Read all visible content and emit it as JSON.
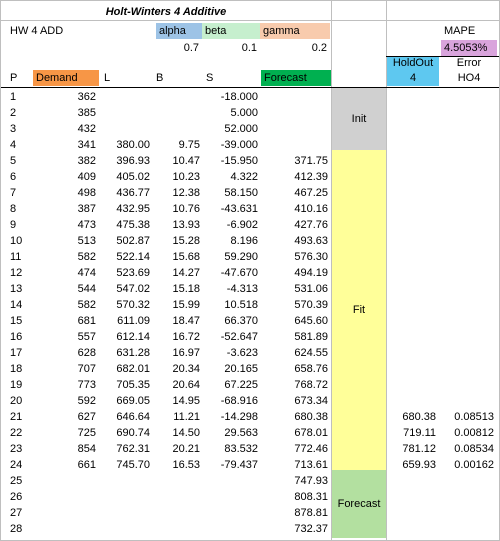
{
  "title": "Holt-Winters 4 Additive",
  "model_label": "HW 4 ADD",
  "params": {
    "alpha_label": "alpha",
    "alpha": "0.7",
    "beta_label": "beta",
    "beta": "0.1",
    "gamma_label": "gamma",
    "gamma": "0.2"
  },
  "mape": {
    "label": "MAPE",
    "value": "4.5053%"
  },
  "headers": {
    "p": "P",
    "demand": "Demand",
    "l": "L",
    "b": "B",
    "s": "S",
    "forecast": "Forecast",
    "holdout_line1": "HoldOut",
    "holdout_line2": "4",
    "error_line1": "Error",
    "error_line2": "HO4"
  },
  "phases": {
    "init": "Init",
    "fit": "Fit",
    "forecast": "Forecast"
  },
  "rows": [
    {
      "p": "1",
      "demand": "362",
      "l": "",
      "b": "",
      "s": "-18.000",
      "forecast": "",
      "holdout": "",
      "error": ""
    },
    {
      "p": "2",
      "demand": "385",
      "l": "",
      "b": "",
      "s": "5.000",
      "forecast": "",
      "holdout": "",
      "error": ""
    },
    {
      "p": "3",
      "demand": "432",
      "l": "",
      "b": "",
      "s": "52.000",
      "forecast": "",
      "holdout": "",
      "error": ""
    },
    {
      "p": "4",
      "demand": "341",
      "l": "380.00",
      "b": "9.75",
      "s": "-39.000",
      "forecast": "",
      "holdout": "",
      "error": ""
    },
    {
      "p": "5",
      "demand": "382",
      "l": "396.93",
      "b": "10.47",
      "s": "-15.950",
      "forecast": "371.75",
      "holdout": "",
      "error": ""
    },
    {
      "p": "6",
      "demand": "409",
      "l": "405.02",
      "b": "10.23",
      "s": "4.322",
      "forecast": "412.39",
      "holdout": "",
      "error": ""
    },
    {
      "p": "7",
      "demand": "498",
      "l": "436.77",
      "b": "12.38",
      "s": "58.150",
      "forecast": "467.25",
      "holdout": "",
      "error": ""
    },
    {
      "p": "8",
      "demand": "387",
      "l": "432.95",
      "b": "10.76",
      "s": "-43.631",
      "forecast": "410.16",
      "holdout": "",
      "error": ""
    },
    {
      "p": "9",
      "demand": "473",
      "l": "475.38",
      "b": "13.93",
      "s": "-6.902",
      "forecast": "427.76",
      "holdout": "",
      "error": ""
    },
    {
      "p": "10",
      "demand": "513",
      "l": "502.87",
      "b": "15.28",
      "s": "8.196",
      "forecast": "493.63",
      "holdout": "",
      "error": ""
    },
    {
      "p": "11",
      "demand": "582",
      "l": "522.14",
      "b": "15.68",
      "s": "59.290",
      "forecast": "576.30",
      "holdout": "",
      "error": ""
    },
    {
      "p": "12",
      "demand": "474",
      "l": "523.69",
      "b": "14.27",
      "s": "-47.670",
      "forecast": "494.19",
      "holdout": "",
      "error": ""
    },
    {
      "p": "13",
      "demand": "544",
      "l": "547.02",
      "b": "15.18",
      "s": "-4.313",
      "forecast": "531.06",
      "holdout": "",
      "error": ""
    },
    {
      "p": "14",
      "demand": "582",
      "l": "570.32",
      "b": "15.99",
      "s": "10.518",
      "forecast": "570.39",
      "holdout": "",
      "error": ""
    },
    {
      "p": "15",
      "demand": "681",
      "l": "611.09",
      "b": "18.47",
      "s": "66.370",
      "forecast": "645.60",
      "holdout": "",
      "error": ""
    },
    {
      "p": "16",
      "demand": "557",
      "l": "612.14",
      "b": "16.72",
      "s": "-52.647",
      "forecast": "581.89",
      "holdout": "",
      "error": ""
    },
    {
      "p": "17",
      "demand": "628",
      "l": "631.28",
      "b": "16.97",
      "s": "-3.623",
      "forecast": "624.55",
      "holdout": "",
      "error": ""
    },
    {
      "p": "18",
      "demand": "707",
      "l": "682.01",
      "b": "20.34",
      "s": "20.165",
      "forecast": "658.76",
      "holdout": "",
      "error": ""
    },
    {
      "p": "19",
      "demand": "773",
      "l": "705.35",
      "b": "20.64",
      "s": "67.225",
      "forecast": "768.72",
      "holdout": "",
      "error": ""
    },
    {
      "p": "20",
      "demand": "592",
      "l": "669.05",
      "b": "14.95",
      "s": "-68.916",
      "forecast": "673.34",
      "holdout": "",
      "error": ""
    },
    {
      "p": "21",
      "demand": "627",
      "l": "646.64",
      "b": "11.21",
      "s": "-14.298",
      "forecast": "680.38",
      "holdout": "680.38",
      "error": "0.08513"
    },
    {
      "p": "22",
      "demand": "725",
      "l": "690.74",
      "b": "14.50",
      "s": "29.563",
      "forecast": "678.01",
      "holdout": "719.11",
      "error": "0.00812"
    },
    {
      "p": "23",
      "demand": "854",
      "l": "762.31",
      "b": "20.21",
      "s": "83.532",
      "forecast": "772.46",
      "holdout": "781.12",
      "error": "0.08534"
    },
    {
      "p": "24",
      "demand": "661",
      "l": "745.70",
      "b": "16.53",
      "s": "-79.437",
      "forecast": "713.61",
      "holdout": "659.93",
      "error": "0.00162"
    },
    {
      "p": "25",
      "demand": "",
      "l": "",
      "b": "",
      "s": "",
      "forecast": "747.93",
      "holdout": "",
      "error": ""
    },
    {
      "p": "26",
      "demand": "",
      "l": "",
      "b": "",
      "s": "",
      "forecast": "808.31",
      "holdout": "",
      "error": ""
    },
    {
      "p": "27",
      "demand": "",
      "l": "",
      "b": "",
      "s": "",
      "forecast": "878.81",
      "holdout": "",
      "error": ""
    },
    {
      "p": "28",
      "demand": "",
      "l": "",
      "b": "",
      "s": "",
      "forecast": "732.37",
      "holdout": "",
      "error": ""
    }
  ]
}
